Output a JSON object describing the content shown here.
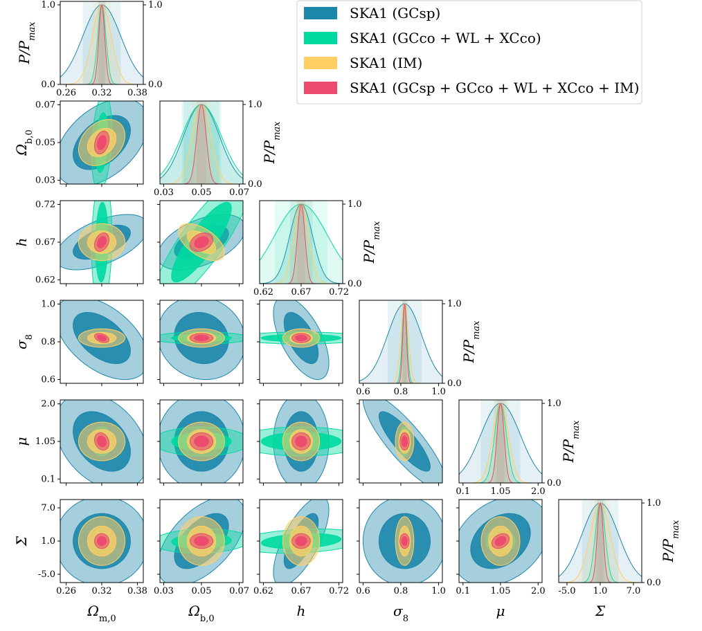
{
  "chart_data": {
    "type": "corner",
    "title": "",
    "colors": {
      "gcsp": "#1d86ab",
      "gcco": "#00d9a0",
      "im": "#ffcf66",
      "combined": "#ec4a6f"
    },
    "series": [
      {
        "key": "gcsp",
        "name": "SKA1 (GCsp)",
        "color": "#1d86ab"
      },
      {
        "key": "gcco",
        "name": "SKA1 (GCco + WL + XCco)",
        "color": "#00d9a0"
      },
      {
        "key": "im",
        "name": "SKA1 (IM)",
        "color": "#ffcf66"
      },
      {
        "key": "combined",
        "name": "SKA1 (GCsp + GCco + WL + XCco + IM)",
        "color": "#ec4a6f"
      }
    ],
    "parameters": [
      {
        "key": "om",
        "label": "Ω_m,0",
        "fiducial": 0.32,
        "range": [
          0.25,
          0.39
        ],
        "ticks": [
          "0.26",
          "0.32",
          "0.38"
        ],
        "tick_values": [
          0.26,
          0.32,
          0.38
        ]
      },
      {
        "key": "ob",
        "label": "Ω_b,0",
        "fiducial": 0.05,
        "range": [
          0.028,
          0.072
        ],
        "ticks": [
          "0.03",
          "0.05",
          "0.07"
        ],
        "tick_values": [
          0.03,
          0.05,
          0.07
        ]
      },
      {
        "key": "h",
        "label": "h",
        "fiducial": 0.67,
        "range": [
          0.615,
          0.725
        ],
        "ticks": [
          "0.62",
          "0.67",
          "0.72"
        ],
        "tick_values": [
          0.62,
          0.67,
          0.72
        ]
      },
      {
        "key": "s8",
        "label": "σ_8",
        "fiducial": 0.82,
        "range": [
          0.58,
          1.02
        ],
        "ticks": [
          "0.6",
          "0.8",
          "1.0"
        ],
        "tick_values": [
          0.6,
          0.8,
          1.0
        ]
      },
      {
        "key": "mu",
        "label": "μ",
        "fiducial": 1.05,
        "range": [
          0.0,
          2.1
        ],
        "ticks": [
          "0.1",
          "1.05",
          "2.0"
        ],
        "tick_values": [
          0.1,
          1.05,
          2.0
        ]
      },
      {
        "key": "Sig",
        "label": "Σ",
        "fiducial": 1.0,
        "range": [
          -6.5,
          8.5
        ],
        "ticks": [
          "-5.0",
          "1.0",
          "7.0"
        ],
        "tick_values": [
          -5.0,
          1.0,
          7.0
        ]
      }
    ],
    "sigma_1d": {
      "gcsp": {
        "om": 0.032,
        "ob": 0.0095,
        "h": 0.015,
        "s8": 0.09,
        "mu": 0.5,
        "Sig": 3.3
      },
      "gcco": {
        "om": 0.007,
        "ob": 0.0105,
        "h": 0.035,
        "s8": 0.013,
        "mu": 0.15,
        "Sig": 0.9
      },
      "im": {
        "om": 0.016,
        "ob": 0.005,
        "h": 0.01,
        "s8": 0.02,
        "mu": 0.2,
        "Sig": 1.8
      },
      "combined": {
        "om": 0.005,
        "ob": 0.0025,
        "h": 0.005,
        "s8": 0.01,
        "mu": 0.09,
        "Sig": 0.55
      }
    },
    "correlations": {
      "gcsp": {
        "ob|om": 0.45,
        "h|om": 0.55,
        "h|ob": 0.5,
        "s8|om": -0.5,
        "s8|ob": -0.1,
        "s8|h": -0.6,
        "mu|om": -0.35,
        "mu|ob": 0.0,
        "mu|h": 0.0,
        "mu|s8": -0.85,
        "Sig|om": 0.0,
        "Sig|ob": 0.55,
        "Sig|h": 0.7,
        "Sig|s8": 0.0,
        "Sig|mu": 0.3
      },
      "gcco": {
        "ob|om": 0.25,
        "h|om": 0.1,
        "h|ob": 0.85,
        "s8|om": -0.1,
        "s8|ob": 0.0,
        "s8|h": 0.0,
        "mu|om": 0.0,
        "mu|ob": 0.0,
        "mu|h": 0.0,
        "mu|s8": 0.0,
        "Sig|om": 0.0,
        "Sig|ob": 0.1,
        "Sig|h": 0.25,
        "Sig|s8": 0.0,
        "Sig|mu": 0.0
      },
      "im": {
        "ob|om": 0.3,
        "h|om": 0.0,
        "h|ob": -0.55,
        "s8|om": 0.0,
        "s8|ob": 0.0,
        "s8|h": 0.0,
        "mu|om": 0.0,
        "mu|ob": 0.0,
        "mu|h": 0.0,
        "mu|s8": 0.0,
        "Sig|om": 0.0,
        "Sig|ob": 0.0,
        "Sig|h": 0.0,
        "Sig|s8": 0.0,
        "Sig|mu": 0.0
      },
      "combined": {
        "ob|om": 0.3,
        "h|om": 0.3,
        "h|ob": 0.3,
        "s8|om": -0.4,
        "s8|ob": 0.0,
        "s8|h": 0.0,
        "mu|om": -0.2,
        "mu|ob": 0.0,
        "mu|h": 0.0,
        "mu|s8": 0.0,
        "Sig|om": 0.0,
        "Sig|ob": 0.0,
        "Sig|h": 0.0,
        "Sig|s8": 0.0,
        "Sig|mu": 0.3
      }
    },
    "marginal_axis": {
      "ylabel": "P/P_max",
      "ticks": [
        "0.0",
        "1.0"
      ],
      "tick_values": [
        0.0,
        1.0
      ]
    },
    "contour_levels": [
      "2σ",
      "1σ"
    ]
  }
}
